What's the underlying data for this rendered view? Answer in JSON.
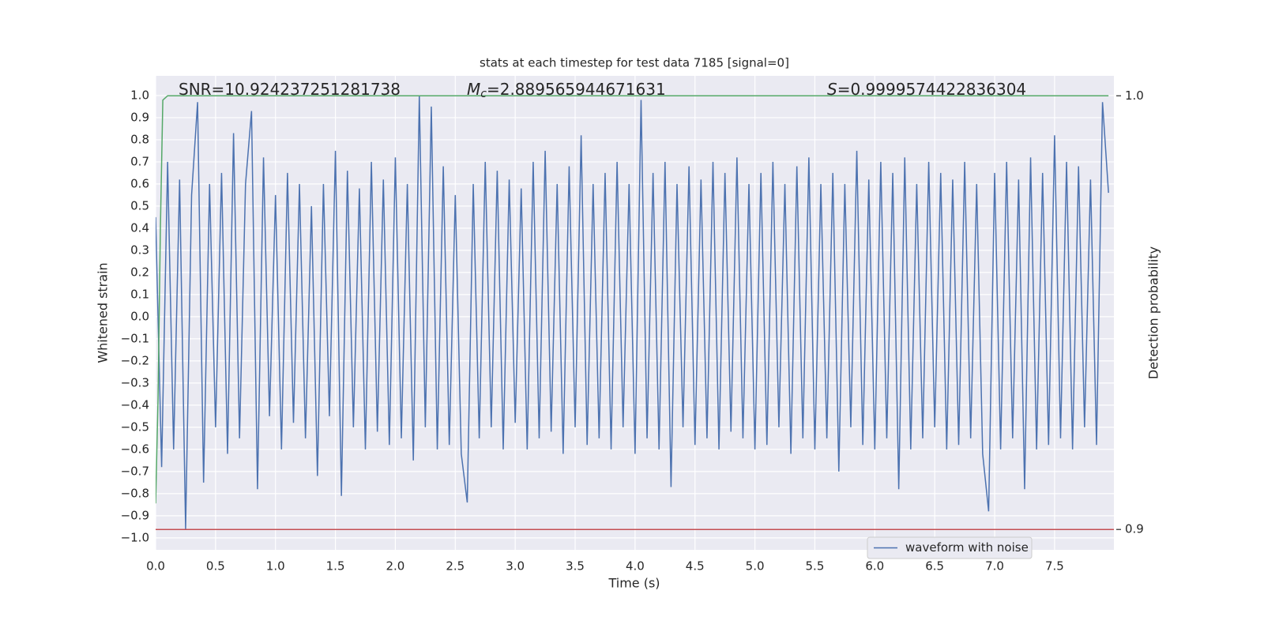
{
  "chart_data": {
    "type": "line",
    "title": "stats at each timestep for test data 7185 [signal=0]",
    "xlabel": "Time (s)",
    "ylabel": "Whitened strain",
    "y2label": "Detection probability",
    "annotations": [
      {
        "text": "SNR=10.924237251281738"
      },
      {
        "symbol": "M",
        "subscript": "c",
        "text": "=2.889565944671631"
      },
      {
        "symbol": "S",
        "text": "=0.9999574422836304"
      }
    ],
    "xlim": [
      0,
      7.995
    ],
    "ylim": [
      -1.054,
      1.089
    ],
    "y2lim": [
      0.8953,
      1.0046
    ],
    "grid": true,
    "legend": "lower right",
    "xticks": [
      {
        "value": 0,
        "label": "0.0"
      },
      0.5,
      {
        "value": 1,
        "label": "1.0"
      },
      1.5,
      {
        "value": 2,
        "label": "2.0"
      },
      2.5,
      {
        "value": 3,
        "label": "3.0"
      },
      3.5,
      {
        "value": 4,
        "label": "4.0"
      },
      4.5,
      {
        "value": 5,
        "label": "5.0"
      },
      5.5,
      {
        "value": 6,
        "label": "6.0"
      },
      6.5,
      {
        "value": 7,
        "label": "7.0"
      },
      7.5
    ],
    "yticks": [
      {
        "value": -1,
        "label": "−1.0"
      },
      {
        "value": -0.9,
        "label": "−0.9"
      },
      {
        "value": -0.8,
        "label": "−0.8"
      },
      {
        "value": -0.7,
        "label": "−0.7"
      },
      {
        "value": -0.6,
        "label": "−0.6"
      },
      {
        "value": -0.5,
        "label": "−0.5"
      },
      {
        "value": -0.4,
        "label": "−0.4"
      },
      {
        "value": -0.3,
        "label": "−0.3"
      },
      {
        "value": -0.2,
        "label": "−0.2"
      },
      {
        "value": -0.1,
        "label": "−0.1"
      },
      {
        "value": 0,
        "label": "0.0"
      },
      0.1,
      0.2,
      0.3,
      0.4,
      0.5,
      0.6,
      0.7,
      0.8,
      0.9,
      {
        "value": 1,
        "label": "1.0"
      }
    ],
    "y2ticks": [
      0.9,
      {
        "value": 1,
        "label": "1.0"
      }
    ],
    "series": [
      {
        "name": "waveform with noise",
        "color": "#4c72b0",
        "x": [
          0,
          0.05,
          0.1,
          0.15,
          0.2,
          0.25,
          0.3,
          0.35,
          0.4,
          0.45,
          0.5,
          0.55,
          0.6,
          0.65,
          0.7,
          0.75,
          0.8,
          0.85,
          0.9,
          0.95,
          1,
          1.05,
          1.1,
          1.15,
          1.2,
          1.25,
          1.3,
          1.35,
          1.4,
          1.45,
          1.5,
          1.55,
          1.6,
          1.65,
          1.7,
          1.75,
          1.8,
          1.85,
          1.9,
          1.95,
          2,
          2.05,
          2.1,
          2.15,
          2.2,
          2.25,
          2.3,
          2.35,
          2.4,
          2.45,
          2.5,
          2.55,
          2.6,
          2.65,
          2.7,
          2.75,
          2.8,
          2.85,
          2.9,
          2.95,
          3,
          3.05,
          3.1,
          3.15,
          3.2,
          3.25,
          3.3,
          3.35,
          3.4,
          3.45,
          3.5,
          3.55,
          3.6,
          3.65,
          3.7,
          3.75,
          3.8,
          3.85,
          3.9,
          3.95,
          4,
          4.05,
          4.1,
          4.15,
          4.2,
          4.25,
          4.3,
          4.35,
          4.4,
          4.45,
          4.5,
          4.55,
          4.6,
          4.65,
          4.7,
          4.75,
          4.8,
          4.85,
          4.9,
          4.95,
          5,
          5.05,
          5.1,
          5.15,
          5.2,
          5.25,
          5.3,
          5.35,
          5.4,
          5.45,
          5.5,
          5.55,
          5.6,
          5.65,
          5.7,
          5.75,
          5.8,
          5.85,
          5.9,
          5.95,
          6,
          6.05,
          6.1,
          6.15,
          6.2,
          6.25,
          6.3,
          6.35,
          6.4,
          6.45,
          6.5,
          6.55,
          6.6,
          6.65,
          6.7,
          6.75,
          6.8,
          6.85,
          6.9,
          6.95,
          7,
          7.05,
          7.1,
          7.15,
          7.2,
          7.25,
          7.3,
          7.35,
          7.4,
          7.45,
          7.5,
          7.55,
          7.6,
          7.65,
          7.7,
          7.75,
          7.8,
          7.85,
          7.9,
          7.95
        ],
        "values": [
          0.45,
          -0.68,
          0.7,
          -0.6,
          0.62,
          -0.96,
          0.55,
          0.97,
          -0.75,
          0.6,
          -0.5,
          0.65,
          -0.62,
          0.83,
          -0.55,
          0.6,
          0.93,
          -0.78,
          0.72,
          -0.45,
          0.55,
          -0.6,
          0.65,
          -0.48,
          0.6,
          -0.55,
          0.5,
          -0.72,
          0.6,
          -0.45,
          0.75,
          -0.81,
          0.66,
          -0.5,
          0.58,
          -0.6,
          0.7,
          -0.52,
          0.62,
          -0.58,
          0.72,
          -0.55,
          0.6,
          -0.65,
          1.0,
          -0.5,
          0.95,
          -0.6,
          0.68,
          -0.58,
          0.55,
          -0.62,
          -0.84,
          0.6,
          -0.55,
          0.7,
          -0.5,
          0.66,
          -0.6,
          0.62,
          -0.48,
          0.58,
          -0.6,
          0.7,
          -0.55,
          0.75,
          -0.52,
          0.6,
          -0.62,
          0.68,
          -0.5,
          0.82,
          -0.58,
          0.6,
          -0.55,
          0.65,
          -0.6,
          0.7,
          -0.5,
          0.6,
          -0.62,
          0.98,
          -0.55,
          0.65,
          -0.6,
          0.7,
          -0.77,
          0.6,
          -0.5,
          0.68,
          -0.58,
          0.62,
          -0.55,
          0.7,
          -0.6,
          0.65,
          -0.52,
          0.72,
          -0.55,
          0.6,
          -0.6,
          0.65,
          -0.58,
          0.7,
          -0.5,
          0.6,
          -0.62,
          0.68,
          -0.55,
          0.72,
          -0.6,
          0.6,
          -0.55,
          0.65,
          -0.7,
          0.6,
          -0.5,
          0.75,
          -0.58,
          0.62,
          -0.6,
          0.7,
          -0.55,
          0.65,
          -0.78,
          0.72,
          -0.6,
          0.6,
          -0.55,
          0.7,
          -0.5,
          0.65,
          -0.6,
          0.62,
          -0.58,
          0.7,
          -0.55,
          0.6,
          -0.62,
          -0.88,
          0.65,
          -0.6,
          0.7,
          -0.55,
          0.62,
          -0.78,
          0.72,
          -0.6,
          0.65,
          -0.58,
          0.82,
          -0.55,
          0.7,
          -0.6,
          0.68,
          -0.5,
          0.62,
          -0.58,
          0.97,
          0.56
        ]
      }
    ],
    "probability": {
      "color": "#55a868",
      "axis": "y2",
      "x": [
        0,
        0.02,
        0.04,
        0.06,
        0.1,
        7.95
      ],
      "values": [
        0.906,
        0.93,
        0.97,
        0.999,
        1.0,
        1.0
      ]
    },
    "threshold": {
      "color": "#c44e52",
      "axis": "y2",
      "value": 0.9
    }
  }
}
